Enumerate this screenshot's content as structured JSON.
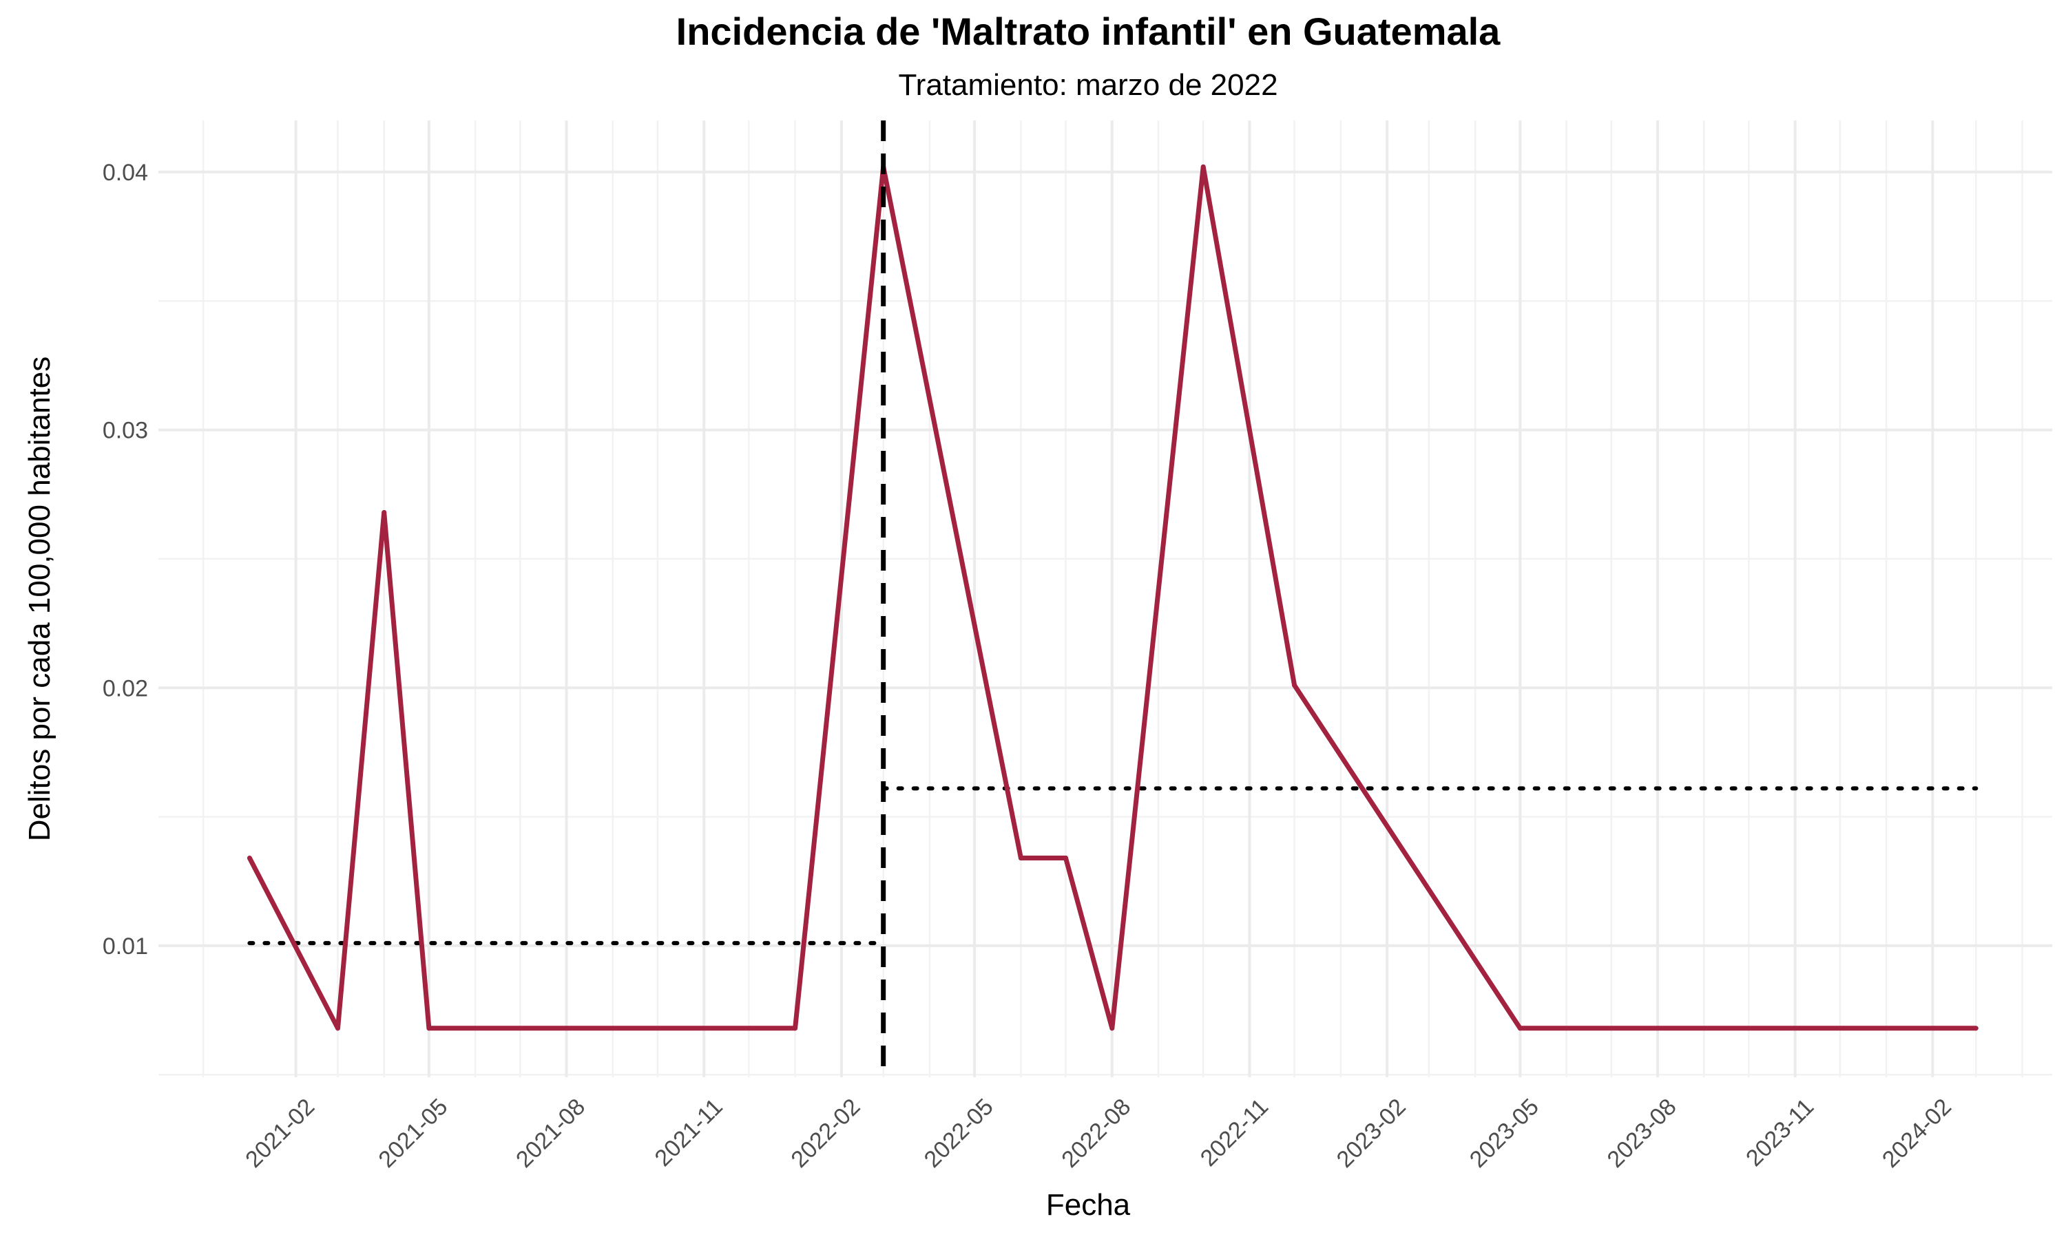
{
  "chart_data": {
    "type": "line",
    "title": "Incidencia de 'Maltrato infantil' en Guatemala",
    "subtitle": "Tratamiento: marzo de 2022",
    "xlabel": "Fecha",
    "ylabel": "Delitos por cada 100,000 habitantes",
    "x_range": [
      "2020-11-01",
      "2024-04-21"
    ],
    "ylim": [
      0.0049,
      0.042
    ],
    "x_ticks": [
      "2021-02",
      "2021-05",
      "2021-08",
      "2021-11",
      "2022-02",
      "2022-05",
      "2022-08",
      "2022-11",
      "2023-02",
      "2023-05",
      "2023-08",
      "2023-11",
      "2024-02"
    ],
    "y_ticks": [
      0.01,
      0.02,
      0.03,
      0.04
    ],
    "y_tick_labels": [
      "0.01",
      "0.02",
      "0.03",
      "0.04"
    ],
    "grid": true,
    "series": [
      {
        "color": "#a2223f",
        "points": [
          {
            "x": "2021-01-01",
            "y": 0.0134
          },
          {
            "x": "2021-03-01",
            "y": 0.0068
          },
          {
            "x": "2021-04-01",
            "y": 0.0268
          },
          {
            "x": "2021-05-01",
            "y": 0.0068
          },
          {
            "x": "2022-01-01",
            "y": 0.0068
          },
          {
            "x": "2022-03-01",
            "y": 0.0402
          },
          {
            "x": "2022-06-01",
            "y": 0.0134
          },
          {
            "x": "2022-07-01",
            "y": 0.0134
          },
          {
            "x": "2022-08-01",
            "y": 0.0068
          },
          {
            "x": "2022-10-01",
            "y": 0.0402
          },
          {
            "x": "2022-12-01",
            "y": 0.0201
          },
          {
            "x": "2023-05-01",
            "y": 0.0068
          },
          {
            "x": "2024-03-01",
            "y": 0.0068
          }
        ]
      }
    ],
    "treatment_line": {
      "x": "2022-03-01",
      "style": "dashed",
      "color": "#000000"
    },
    "mean_segments": [
      {
        "x_start": "2021-01-01",
        "x_end": "2022-02-25",
        "y": 0.0101,
        "style": "dotted"
      },
      {
        "x_start": "2022-03-01",
        "x_end": "2024-03-01",
        "y": 0.0161,
        "style": "dotted"
      }
    ]
  }
}
